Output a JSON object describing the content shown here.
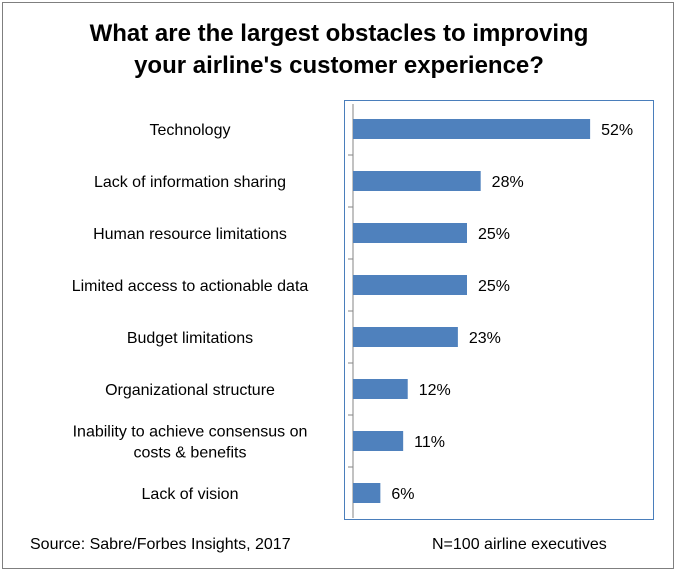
{
  "chart_data": {
    "type": "bar",
    "orientation": "horizontal",
    "title_lines": [
      "What are the largest obstacles to improving",
      "your airline's customer experience?"
    ],
    "categories": [
      [
        "Technology"
      ],
      [
        "Lack of information sharing"
      ],
      [
        "Human resource limitations"
      ],
      [
        "Limited access to actionable data"
      ],
      [
        "Budget limitations"
      ],
      [
        "Organizational structure"
      ],
      [
        "Inability to achieve consensus on",
        "costs & benefits"
      ],
      [
        "Lack of vision"
      ]
    ],
    "values": [
      52,
      28,
      25,
      25,
      23,
      12,
      11,
      6
    ],
    "value_suffix": "%",
    "xlim": [
      0,
      100
    ],
    "bar_color": "#4f81bd",
    "axis_color": "#4a7ebb"
  },
  "footer": {
    "source": "Source: Sabre/Forbes Insights, 2017",
    "sample": "N=100 airline executives"
  }
}
